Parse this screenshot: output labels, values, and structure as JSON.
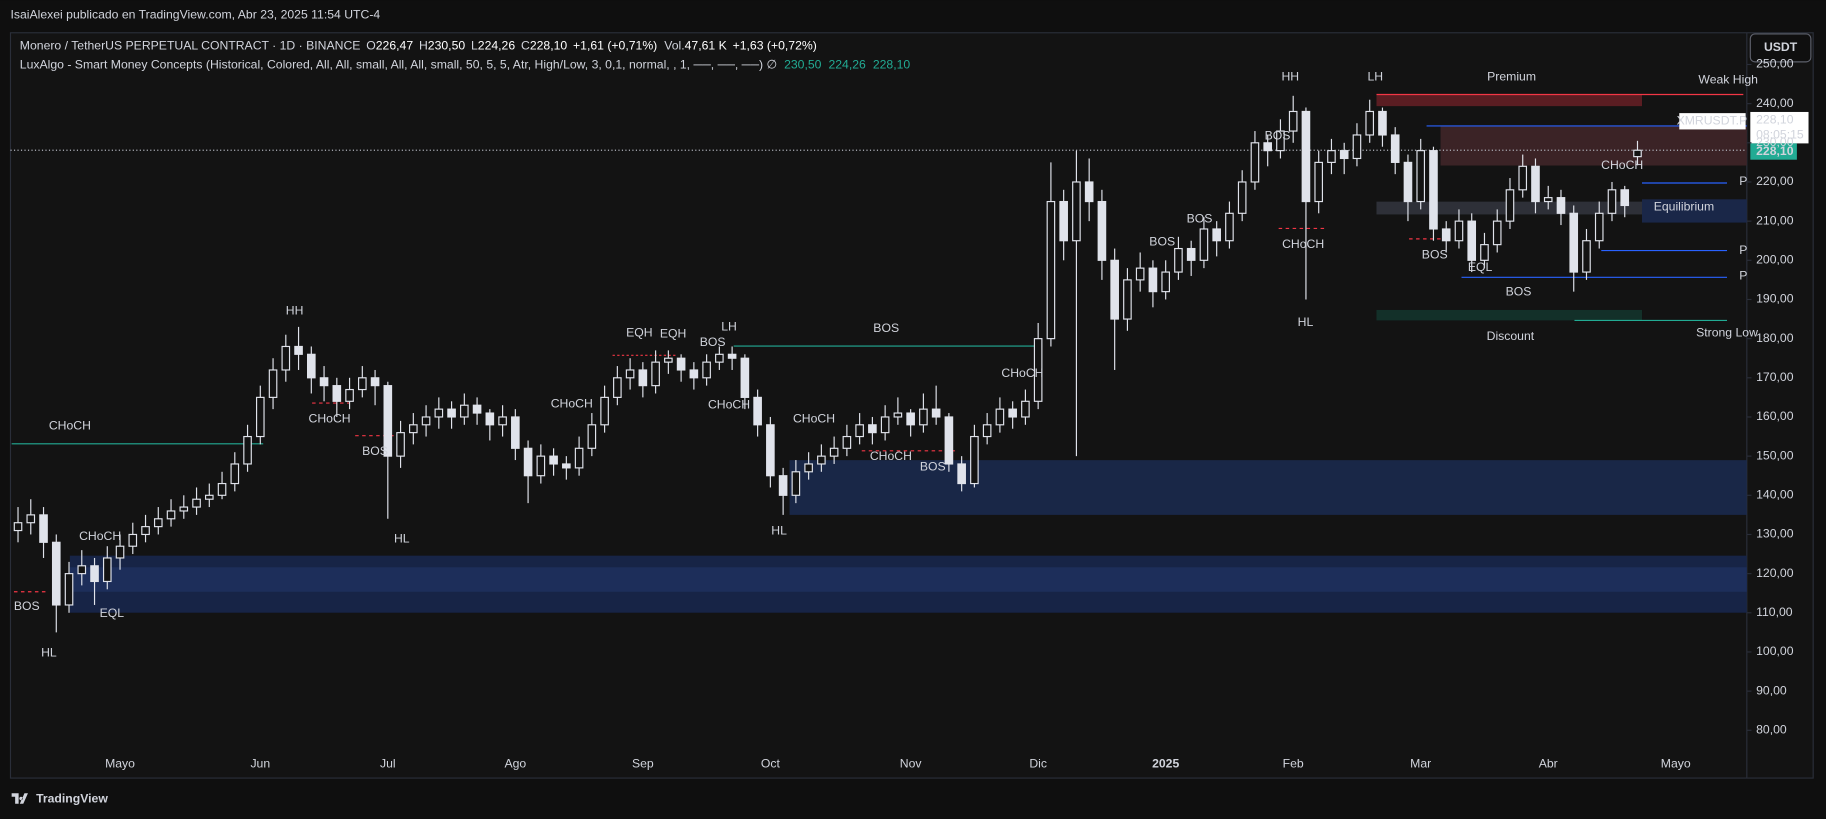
{
  "header": {
    "publisher": "IsaiAlexei publicado en TradingView.com, Abr 23, 2025 11:54 UTC-4",
    "currency_button": "USDT",
    "footer_brand": "TradingView"
  },
  "legend": {
    "symbol": "Monero / TetherUS PERPETUAL CONTRACT · 1D · BINANCE",
    "ohlc": [
      "O",
      "226,47",
      "H",
      "230,50",
      "L",
      "224,26",
      "C",
      "228,10"
    ],
    "change": "+1,61 (+0,71%)",
    "volume_label": "Vol.",
    "volume": "47,61 K",
    "volume_change": "+1,63 (+0,72%)",
    "indicator": "LuxAlgo - Smart Money Concepts (Historical, Colored, All, All, small, All, All, small, 50, 5, 5, Atr, High/Low, 3, 0,1, normal, , 1, ──, ──, ──) ∅",
    "indicator_values": [
      "230,50",
      "224,26",
      "228,10"
    ]
  },
  "price_labels": {
    "symbol": "XMRUSDT.P",
    "last": "228,10",
    "countdown": "08:05:15",
    "last_axis": "228,10"
  },
  "chart_data": {
    "type": "candlestick",
    "candle_color": "#e0e3eb",
    "background": "#131313",
    "categories": [
      null,
      null,
      null,
      null,
      null,
      null,
      null,
      null,
      "Mayo",
      null,
      null,
      null,
      null,
      null,
      null,
      null,
      null,
      null,
      null,
      "Jun",
      null,
      null,
      null,
      null,
      null,
      null,
      null,
      null,
      null,
      "Jul",
      null,
      null,
      null,
      null,
      null,
      null,
      null,
      null,
      null,
      "Ago",
      null,
      null,
      null,
      null,
      null,
      null,
      null,
      null,
      null,
      "Sep",
      null,
      null,
      null,
      null,
      null,
      null,
      null,
      null,
      null,
      "Oct",
      null,
      null,
      null,
      null,
      null,
      null,
      null,
      null,
      null,
      null,
      "Nov",
      null,
      null,
      null,
      null,
      null,
      null,
      null,
      null,
      null,
      "Dic",
      null,
      null,
      null,
      null,
      null,
      null,
      null,
      null,
      null,
      "2025",
      null,
      null,
      null,
      null,
      null,
      null,
      null,
      null,
      null,
      "Feb",
      null,
      null,
      null,
      null,
      null,
      null,
      null,
      null,
      null,
      "Mar",
      null,
      null,
      null,
      null,
      null,
      null,
      null,
      null,
      null,
      "Abr",
      null,
      null,
      null,
      null,
      null,
      null,
      null,
      null,
      null,
      "Mayo"
    ],
    "ohlc": [
      [
        131,
        137,
        128,
        133
      ],
      [
        133,
        139,
        130,
        135
      ],
      [
        135,
        137,
        124,
        128
      ],
      [
        128,
        130,
        105,
        112
      ],
      [
        112,
        123,
        110,
        120
      ],
      [
        120,
        126,
        117,
        122
      ],
      [
        122,
        124,
        112,
        118
      ],
      [
        118,
        127,
        116,
        124
      ],
      [
        124,
        130,
        121,
        127
      ],
      [
        127,
        133,
        125,
        130
      ],
      [
        130,
        135,
        128,
        132
      ],
      [
        132,
        137,
        130,
        134
      ],
      [
        134,
        139,
        132,
        136
      ],
      [
        136,
        140,
        134,
        137
      ],
      [
        137,
        142,
        135,
        139
      ],
      [
        139,
        143,
        137,
        140
      ],
      [
        140,
        146,
        139,
        143
      ],
      [
        143,
        151,
        141,
        148
      ],
      [
        148,
        158,
        146,
        155
      ],
      [
        155,
        168,
        153,
        165
      ],
      [
        165,
        175,
        162,
        172
      ],
      [
        172,
        181,
        169,
        178
      ],
      [
        178,
        183,
        172,
        176
      ],
      [
        176,
        178,
        166,
        170
      ],
      [
        170,
        173,
        164,
        168
      ],
      [
        168,
        170,
        160,
        164
      ],
      [
        164,
        170,
        162,
        167
      ],
      [
        167,
        173,
        165,
        170
      ],
      [
        170,
        172,
        163,
        168
      ],
      [
        168,
        169,
        134,
        150
      ],
      [
        150,
        159,
        147,
        156
      ],
      [
        156,
        161,
        153,
        158
      ],
      [
        158,
        163,
        155,
        160
      ],
      [
        160,
        165,
        157,
        162
      ],
      [
        162,
        164,
        157,
        160
      ],
      [
        160,
        166,
        158,
        163
      ],
      [
        163,
        165,
        158,
        161
      ],
      [
        161,
        162,
        154,
        158
      ],
      [
        158,
        163,
        155,
        160
      ],
      [
        160,
        162,
        149,
        152
      ],
      [
        152,
        154,
        138,
        145
      ],
      [
        145,
        153,
        143,
        150
      ],
      [
        150,
        152,
        145,
        148
      ],
      [
        148,
        150,
        144,
        147
      ],
      [
        147,
        155,
        145,
        152
      ],
      [
        152,
        161,
        150,
        158
      ],
      [
        158,
        168,
        156,
        165
      ],
      [
        165,
        173,
        163,
        170
      ],
      [
        170,
        175,
        167,
        172
      ],
      [
        172,
        174,
        165,
        168
      ],
      [
        168,
        177,
        166,
        174
      ],
      [
        174,
        177,
        171,
        175
      ],
      [
        175,
        176,
        169,
        172
      ],
      [
        172,
        174,
        167,
        170
      ],
      [
        170,
        176,
        168,
        174
      ],
      [
        174,
        178,
        172,
        176
      ],
      [
        176,
        178,
        172,
        175
      ],
      [
        175,
        176,
        162,
        165
      ],
      [
        165,
        167,
        155,
        158
      ],
      [
        158,
        160,
        142,
        145
      ],
      [
        145,
        147,
        135,
        140
      ],
      [
        140,
        149,
        138,
        146
      ],
      [
        146,
        151,
        144,
        148
      ],
      [
        148,
        153,
        146,
        150
      ],
      [
        150,
        155,
        148,
        152
      ],
      [
        152,
        158,
        150,
        155
      ],
      [
        155,
        161,
        153,
        158
      ],
      [
        158,
        160,
        153,
        156
      ],
      [
        156,
        163,
        154,
        160
      ],
      [
        160,
        165,
        158,
        161
      ],
      [
        161,
        162,
        155,
        158
      ],
      [
        158,
        166,
        156,
        162
      ],
      [
        162,
        168,
        158,
        160
      ],
      [
        160,
        161,
        146,
        148
      ],
      [
        148,
        150,
        141,
        143
      ],
      [
        143,
        158,
        142,
        155
      ],
      [
        155,
        161,
        153,
        158
      ],
      [
        158,
        165,
        156,
        162
      ],
      [
        162,
        164,
        157,
        160
      ],
      [
        160,
        167,
        158,
        164
      ],
      [
        164,
        184,
        162,
        180
      ],
      [
        180,
        225,
        178,
        215
      ],
      [
        215,
        218,
        200,
        205
      ],
      [
        205,
        228,
        150,
        220
      ],
      [
        220,
        226,
        210,
        215
      ],
      [
        215,
        218,
        195,
        200
      ],
      [
        200,
        203,
        172,
        185
      ],
      [
        185,
        198,
        182,
        195
      ],
      [
        195,
        202,
        192,
        198
      ],
      [
        198,
        200,
        188,
        192
      ],
      [
        192,
        200,
        190,
        197
      ],
      [
        197,
        206,
        195,
        203
      ],
      [
        203,
        205,
        196,
        200
      ],
      [
        200,
        211,
        198,
        208
      ],
      [
        208,
        210,
        201,
        205
      ],
      [
        205,
        215,
        203,
        212
      ],
      [
        212,
        223,
        210,
        220
      ],
      [
        220,
        233,
        218,
        230
      ],
      [
        230,
        232,
        224,
        228
      ],
      [
        228,
        236,
        226,
        233
      ],
      [
        233,
        242,
        230,
        238
      ],
      [
        238,
        239,
        190,
        215
      ],
      [
        215,
        228,
        212,
        225
      ],
      [
        225,
        231,
        222,
        228
      ],
      [
        228,
        230,
        222,
        226
      ],
      [
        226,
        235,
        224,
        232
      ],
      [
        232,
        241,
        230,
        238
      ],
      [
        238,
        239,
        229,
        232
      ],
      [
        232,
        234,
        222,
        225
      ],
      [
        225,
        227,
        210,
        215
      ],
      [
        215,
        231,
        213,
        228
      ],
      [
        228,
        229,
        205,
        208
      ],
      [
        208,
        210,
        202,
        205
      ],
      [
        205,
        213,
        203,
        210
      ],
      [
        210,
        212,
        197,
        200
      ],
      [
        200,
        207,
        198,
        204
      ],
      [
        204,
        213,
        202,
        210
      ],
      [
        210,
        221,
        208,
        218
      ],
      [
        218,
        227,
        216,
        224
      ],
      [
        224,
        226,
        212,
        215
      ],
      [
        215,
        219,
        213,
        216
      ],
      [
        216,
        218,
        209,
        212
      ],
      [
        212,
        214,
        192,
        197
      ],
      [
        197,
        208,
        195,
        205
      ],
      [
        205,
        215,
        203,
        212
      ],
      [
        212,
        220,
        210,
        218
      ],
      [
        218,
        219,
        211,
        214
      ],
      [
        226.47,
        230.5,
        224.26,
        228.1
      ],
      null,
      null,
      null
    ],
    "ylim": [
      67.8,
      257.5
    ],
    "yticks": [
      {
        "value": 80,
        "label": "80,00"
      },
      {
        "value": 90,
        "label": "90,00"
      },
      {
        "value": 100,
        "label": "100,00"
      },
      {
        "value": 110,
        "label": "110,00"
      },
      {
        "value": 120,
        "label": "120,00"
      },
      {
        "value": 130,
        "label": "130,00"
      },
      {
        "value": 140,
        "label": "140,00"
      },
      {
        "value": 150,
        "label": "150,00"
      },
      {
        "value": 160,
        "label": "160,00"
      },
      {
        "value": 170,
        "label": "170,00"
      },
      {
        "value": 180,
        "label": "180,00"
      },
      {
        "value": 190,
        "label": "190,00"
      },
      {
        "value": 200,
        "label": "200,00"
      },
      {
        "value": 210,
        "label": "210,00"
      },
      {
        "value": 220,
        "label": "220,00"
      },
      {
        "value": 230,
        "label": "230,00"
      },
      {
        "value": 240,
        "label": "240,00"
      },
      {
        "value": 250,
        "label": "250,00"
      }
    ],
    "grid": false,
    "annotations": [
      {
        "text": "HH",
        "color": "#f23645"
      },
      {
        "text": "HH",
        "color": "#f23645"
      },
      {
        "text": "LH",
        "color": "#f23645"
      },
      {
        "text": "LH",
        "color": "#f23645"
      },
      {
        "text": "EQH",
        "color": "#f23645"
      },
      {
        "text": "EQH",
        "color": "#f23645"
      },
      {
        "text": "CHoCH",
        "color": "#22ab94"
      },
      {
        "text": "CHoCH",
        "color": "#22ab94"
      },
      {
        "text": "BOS",
        "color": "#f23645"
      },
      {
        "text": "HL",
        "color": "#22ab94"
      },
      {
        "text": "EQL",
        "color": "#22ab94"
      },
      {
        "text": "CHoCH",
        "color": "#f23645"
      },
      {
        "text": "BOS",
        "color": "#f23645"
      },
      {
        "text": "HL",
        "color": "#22ab94"
      },
      {
        "text": "CHoCH",
        "color": "#22ab94"
      },
      {
        "text": "BOS",
        "color": "#22ab94"
      },
      {
        "text": "CHoCH",
        "color": "#f23645"
      },
      {
        "text": "BOS",
        "color": "#22ab94"
      },
      {
        "text": "CHoCH",
        "color": "#22ab94"
      },
      {
        "text": "CHoCH",
        "color": "#f23645"
      },
      {
        "text": "BOS",
        "color": "#f23645"
      },
      {
        "text": "HL",
        "color": "#22ab94"
      },
      {
        "text": "CHoCH",
        "color": "#22ab94"
      },
      {
        "text": "BOS",
        "color": "#22ab94"
      },
      {
        "text": "BOS",
        "color": "#22ab94"
      },
      {
        "text": "BOS",
        "color": "#22ab94"
      },
      {
        "text": "CHoCH",
        "color": "#f23645"
      },
      {
        "text": "HL",
        "color": "#22ab94"
      },
      {
        "text": "BOS",
        "color": "#f23645"
      },
      {
        "text": "EQL",
        "color": "#22ab94"
      },
      {
        "text": "BOS",
        "color": "#f23645"
      },
      {
        "text": "CHoCH",
        "color": "#22ab94"
      },
      {
        "text": "Premium",
        "color": "#f23645"
      },
      {
        "text": "Weak High",
        "color": "#f23645"
      },
      {
        "text": "Equilibrium",
        "color": "#b2b5be"
      },
      {
        "text": "Discount",
        "color": "#22ab94"
      },
      {
        "text": "Strong Low",
        "color": "#22ab94"
      },
      {
        "text": "P",
        "color": "#2962ff"
      },
      {
        "text": "P",
        "color": "#2962ff"
      },
      {
        "text": "P",
        "color": "#2962ff"
      }
    ]
  }
}
